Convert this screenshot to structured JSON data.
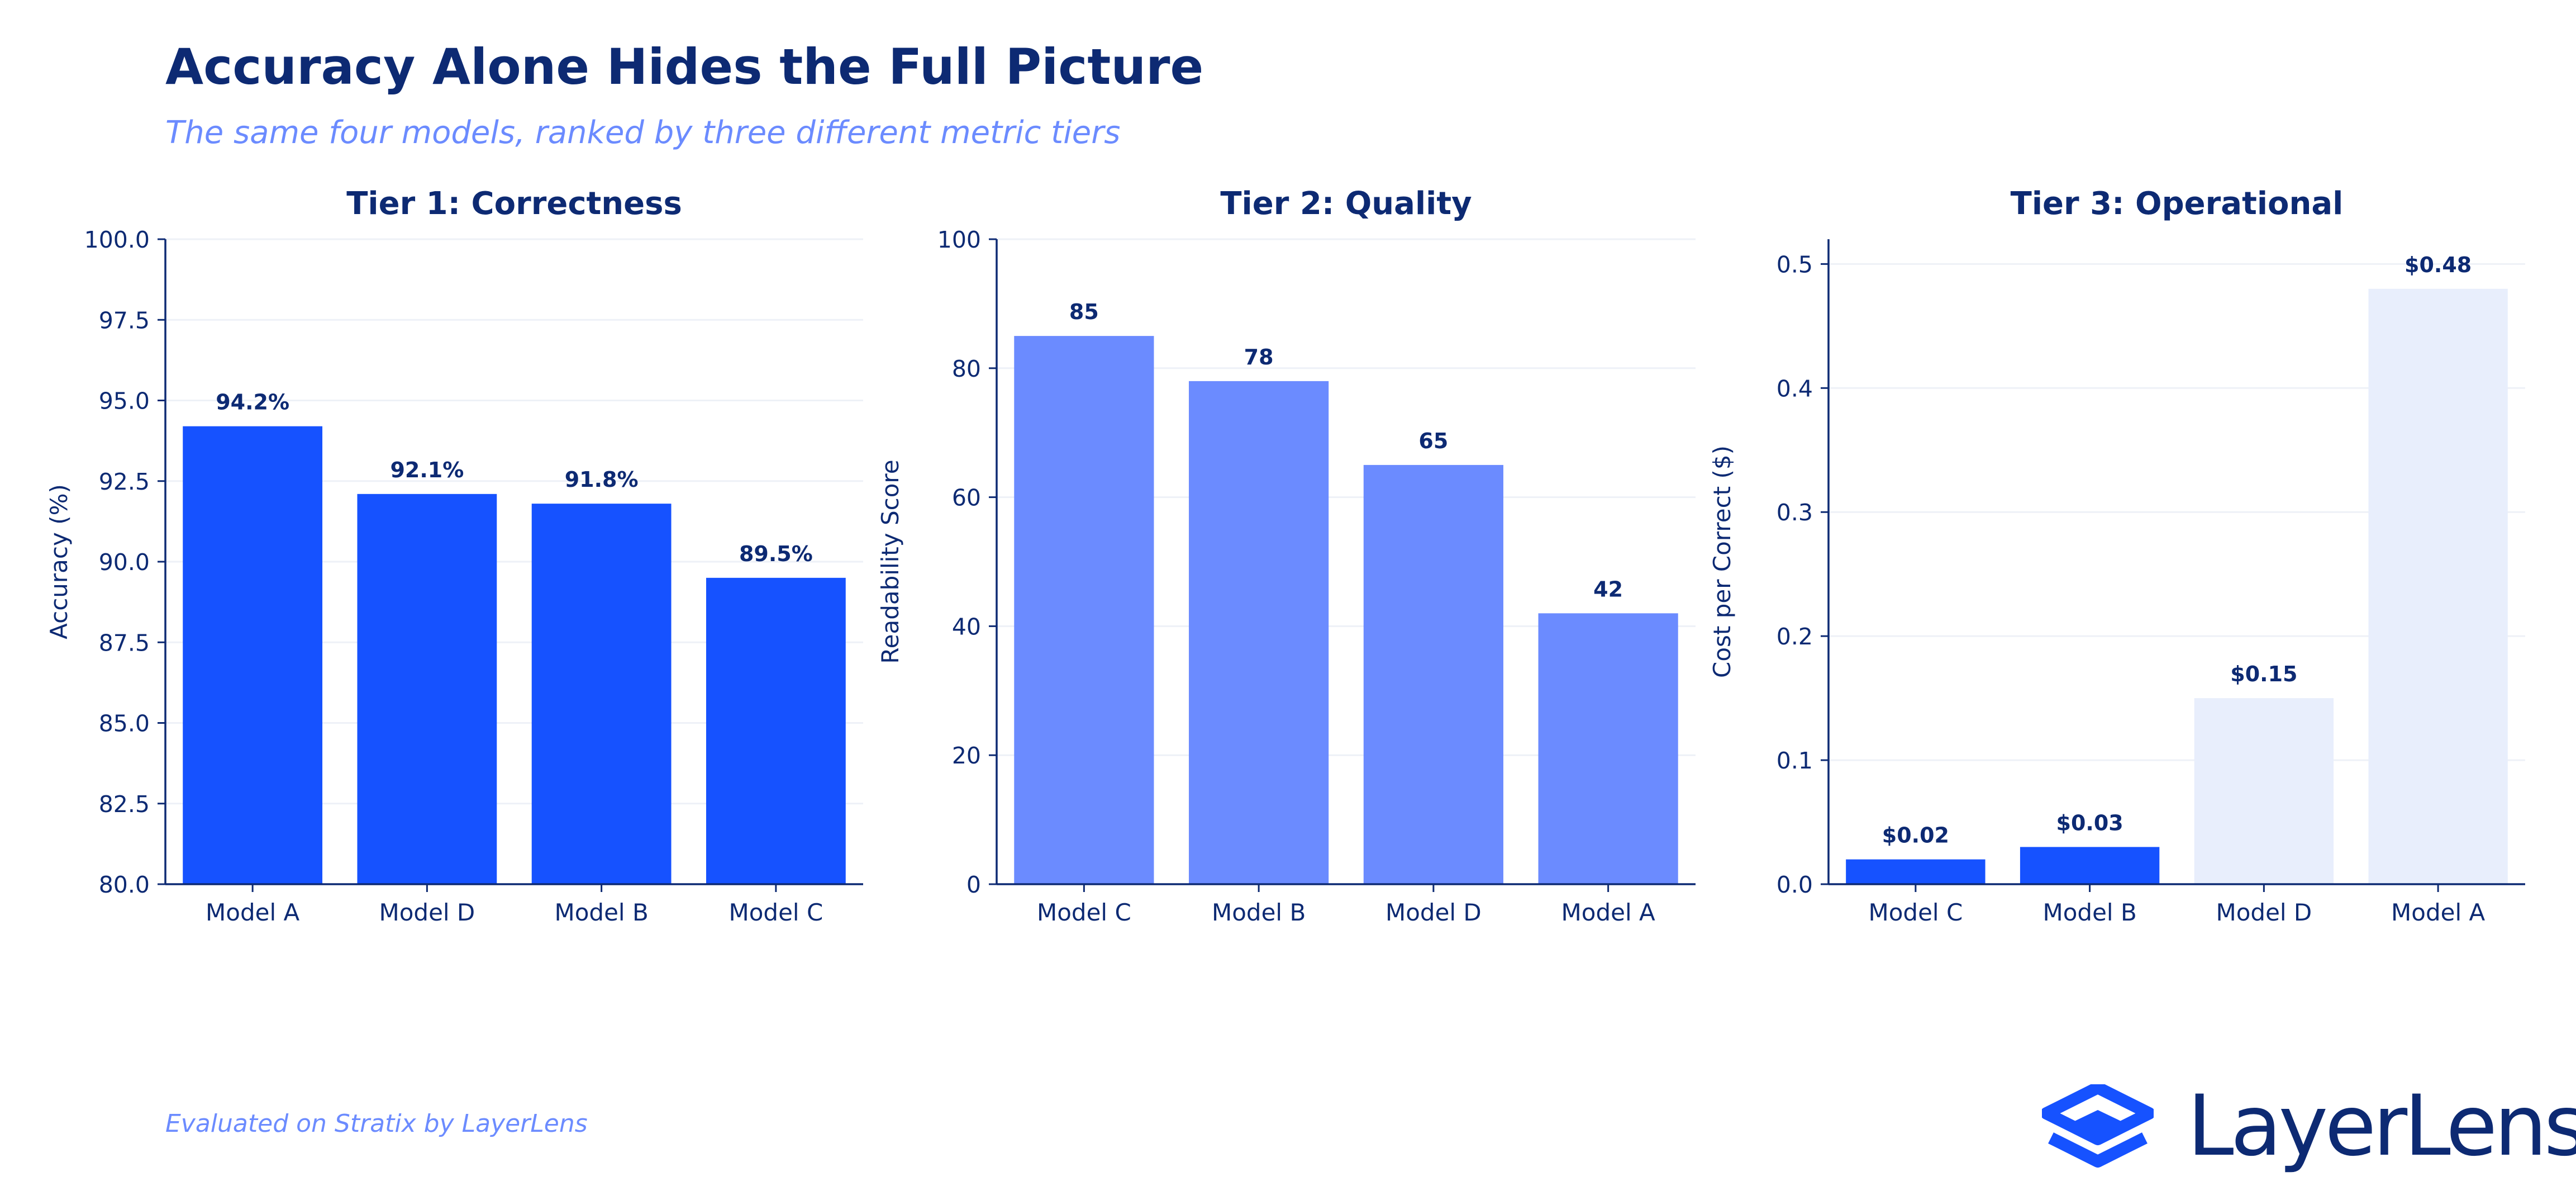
{
  "header": {
    "title": "Accuracy Alone Hides the Full Picture",
    "subtitle": "The same four models, ranked by three different metric tiers"
  },
  "footer": {
    "note": "Evaluated on Stratix by LayerLens",
    "brand": "LayerLens",
    "brand_icon": "layers-logo-icon"
  },
  "colors": {
    "title": "#0d2a73",
    "axis": "#0d2a73",
    "grid": "#eef1f7",
    "tier1_bar": "#1652ff",
    "tier2_bar": "#6b8bff",
    "tier3_highlight": "#1652ff",
    "tier3_muted": "#e8eefc",
    "accent_text": "#6b8bff"
  },
  "chart_data": [
    {
      "type": "bar",
      "title": "Tier 1: Correctness",
      "ylabel": "Accuracy (%)",
      "xlabel": "",
      "categories": [
        "Model A",
        "Model D",
        "Model B",
        "Model C"
      ],
      "values": [
        94.2,
        92.1,
        91.8,
        89.5
      ],
      "data_labels": [
        "94.2%",
        "92.1%",
        "91.8%",
        "89.5%"
      ],
      "ylim": [
        80,
        100
      ],
      "yticks": [
        "80.0",
        "82.5",
        "85.0",
        "87.5",
        "90.0",
        "92.5",
        "95.0",
        "97.5",
        "100.0"
      ],
      "grid": true,
      "bar_colors": [
        "#1652ff",
        "#1652ff",
        "#1652ff",
        "#1652ff"
      ]
    },
    {
      "type": "bar",
      "title": "Tier 2: Quality",
      "ylabel": "Readability Score",
      "xlabel": "",
      "categories": [
        "Model C",
        "Model B",
        "Model D",
        "Model A"
      ],
      "values": [
        85,
        78,
        65,
        42
      ],
      "data_labels": [
        "85",
        "78",
        "65",
        "42"
      ],
      "ylim": [
        0,
        100
      ],
      "yticks": [
        "0",
        "20",
        "40",
        "60",
        "80",
        "100"
      ],
      "grid": true,
      "bar_colors": [
        "#6b8bff",
        "#6b8bff",
        "#6b8bff",
        "#6b8bff"
      ]
    },
    {
      "type": "bar",
      "title": "Tier 3: Operational",
      "ylabel": "Cost per Correct ($)",
      "xlabel": "",
      "categories": [
        "Model C",
        "Model B",
        "Model D",
        "Model A"
      ],
      "values": [
        0.02,
        0.03,
        0.15,
        0.48
      ],
      "data_labels": [
        "$0.02",
        "$0.03",
        "$0.15",
        "$0.48"
      ],
      "ylim": [
        0,
        0.52
      ],
      "yticks": [
        "0.0",
        "0.1",
        "0.2",
        "0.3",
        "0.4",
        "0.5"
      ],
      "grid": true,
      "bar_colors": [
        "#1652ff",
        "#1652ff",
        "#e8eefc",
        "#e8eefc"
      ]
    }
  ]
}
